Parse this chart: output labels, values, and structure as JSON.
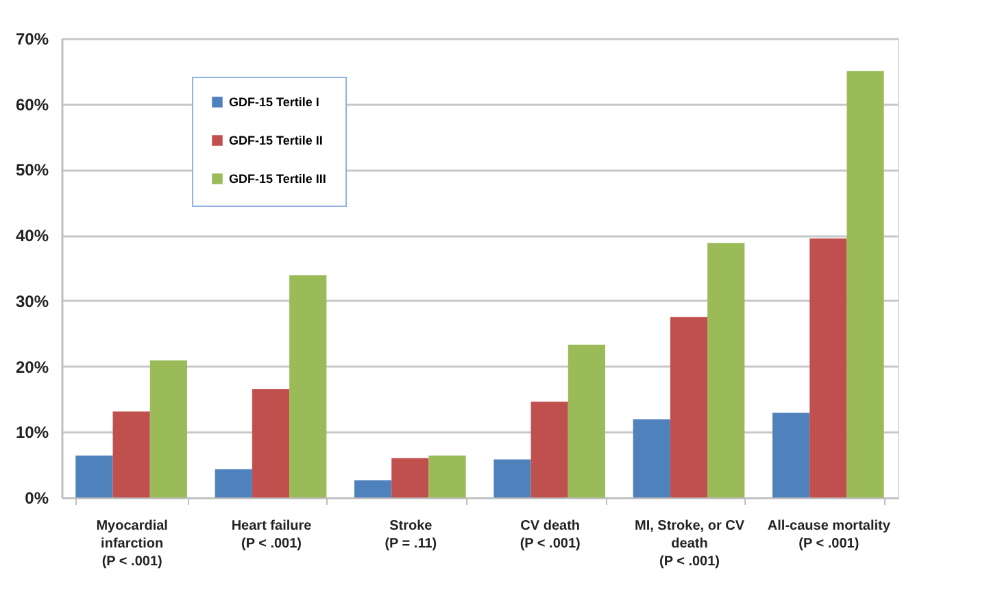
{
  "chart_data": {
    "type": "bar",
    "categories": [
      "Myocardial\ninfarction\n(P < .001)",
      "Heart failure\n(P < .001)",
      "Stroke\n(P = .11)",
      "CV death\n(P < .001)",
      "MI, Stroke, or CV\ndeath\n(P < .001)",
      "All-cause mortality\n(P < .001)"
    ],
    "series": [
      {
        "name": "GDF-15 Tertile I",
        "color": "#4f81bd",
        "values": [
          6.4,
          4.3,
          2.6,
          5.8,
          11.9,
          12.9
        ]
      },
      {
        "name": "GDF-15 Tertile II",
        "color": "#c0504d",
        "values": [
          13.1,
          16.5,
          6.0,
          14.6,
          27.5,
          39.5
        ]
      },
      {
        "name": "GDF-15 Tertile III",
        "color": "#9bbb59",
        "values": [
          20.9,
          33.9,
          6.4,
          23.3,
          38.8,
          65.0
        ]
      }
    ],
    "ylim": [
      0,
      70
    ],
    "yticks": [
      {
        "value": 0,
        "label": "0%"
      },
      {
        "value": 10,
        "label": "10%"
      },
      {
        "value": 20,
        "label": "20%"
      },
      {
        "value": 30,
        "label": "30%"
      },
      {
        "value": 40,
        "label": "40%"
      },
      {
        "value": 50,
        "label": "50%"
      },
      {
        "value": 60,
        "label": "60%"
      },
      {
        "value": 70,
        "label": "70%"
      }
    ],
    "grid": "y",
    "legend": "top left"
  }
}
